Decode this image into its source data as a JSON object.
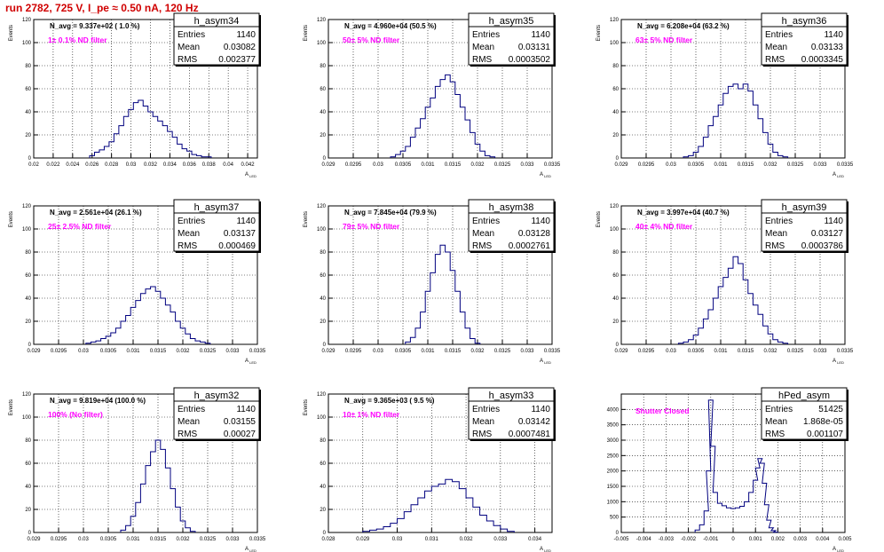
{
  "header": {
    "title": "run 2782,   725 V, I_pe ≈ 0.50 nA, 120 Hz"
  },
  "colors": {
    "title": "#d00000",
    "hist": "#00007f",
    "annotation": "#ff00ff",
    "grid": "#000000"
  },
  "chart_data": [
    {
      "type": "histogram",
      "name": "h_asym34",
      "stats": {
        "Entries": "1140",
        "Mean": "0.03082",
        "RMS": "0.002377"
      },
      "navg": "N_avg = 9.337e+02 ( 1.0 %)",
      "annotation": "1± 0.1% ND filter",
      "ylabel": "Events",
      "xlabel": "A",
      "xlim": [
        0.02,
        0.043
      ],
      "ylim": [
        0,
        120
      ],
      "xticks": [
        "0.02",
        "0.022",
        "0.024",
        "0.026",
        "0.028",
        "0.03",
        "0.032",
        "0.034",
        "0.036",
        "0.038",
        "0.04",
        "0.042"
      ],
      "yticks": [
        "0",
        "20",
        "40",
        "60",
        "80",
        "100",
        "120"
      ],
      "grid": true,
      "stats_box": "top-right",
      "x": [
        0.026,
        0.0265,
        0.027,
        0.0275,
        0.028,
        0.0285,
        0.029,
        0.0295,
        0.03,
        0.0305,
        0.031,
        0.0315,
        0.032,
        0.0325,
        0.033,
        0.0335,
        0.034,
        0.0345,
        0.035,
        0.0355,
        0.036,
        0.0365,
        0.037,
        0.0375,
        0.038
      ],
      "y": [
        2,
        5,
        7,
        10,
        14,
        21,
        28,
        36,
        42,
        48,
        50,
        45,
        40,
        36,
        32,
        28,
        23,
        18,
        12,
        8,
        6,
        3,
        2,
        1,
        1
      ]
    },
    {
      "type": "histogram",
      "name": "h_asym35",
      "stats": {
        "Entries": "1140",
        "Mean": "0.03131",
        "RMS": "0.0003502"
      },
      "navg": "N_avg = 4.960e+04 (50.5 %)",
      "annotation": "50± 5% ND filter",
      "ylabel": "Events",
      "xlabel": "A",
      "xlim": [
        0.029,
        0.0335
      ],
      "ylim": [
        0,
        120
      ],
      "xticks": [
        "0.029",
        "0.0295",
        "0.03",
        "0.0305",
        "0.031",
        "0.0315",
        "0.032",
        "0.0325",
        "0.033",
        "0.0335"
      ],
      "yticks": [
        "0",
        "20",
        "40",
        "60",
        "80",
        "100",
        "120"
      ],
      "grid": true,
      "stats_box": "top-right",
      "x": [
        0.0303,
        0.0304,
        0.0305,
        0.0306,
        0.0307,
        0.0308,
        0.0309,
        0.031,
        0.0311,
        0.0312,
        0.0313,
        0.0314,
        0.0315,
        0.0316,
        0.0317,
        0.0318,
        0.0319,
        0.032,
        0.0321,
        0.0322,
        0.0323
      ],
      "y": [
        1,
        3,
        6,
        10,
        18,
        26,
        34,
        44,
        52,
        62,
        68,
        72,
        66,
        55,
        44,
        33,
        22,
        12,
        6,
        2,
        1
      ]
    },
    {
      "type": "histogram",
      "name": "h_asym36",
      "stats": {
        "Entries": "1140",
        "Mean": "0.03133",
        "RMS": "0.0003345"
      },
      "navg": "N_avg = 6.208e+04 (63.2 %)",
      "annotation": "63± 5% ND filter",
      "ylabel": "Events",
      "xlabel": "A",
      "xlim": [
        0.029,
        0.0335
      ],
      "ylim": [
        0,
        120
      ],
      "xticks": [
        "0.029",
        "0.0295",
        "0.03",
        "0.0305",
        "0.031",
        "0.0315",
        "0.032",
        "0.0325",
        "0.033",
        "0.0335"
      ],
      "yticks": [
        "0",
        "20",
        "40",
        "60",
        "80",
        "100",
        "120"
      ],
      "grid": true,
      "stats_box": "top-right",
      "x": [
        0.0303,
        0.0304,
        0.0305,
        0.0306,
        0.0307,
        0.0308,
        0.0309,
        0.031,
        0.0311,
        0.0312,
        0.0313,
        0.0314,
        0.0315,
        0.0316,
        0.0317,
        0.0318,
        0.0319,
        0.032,
        0.0321,
        0.0322,
        0.0323
      ],
      "y": [
        1,
        2,
        5,
        10,
        18,
        28,
        36,
        46,
        56,
        62,
        64,
        60,
        64,
        58,
        46,
        34,
        22,
        12,
        5,
        2,
        1
      ]
    },
    {
      "type": "histogram",
      "name": "h_asym37",
      "stats": {
        "Entries": "1140",
        "Mean": "0.03137",
        "RMS": "0.000469"
      },
      "navg": "N_avg = 2.561e+04 (26.1 %)",
      "annotation": "25± 2.5% ND filter",
      "ylabel": "Events",
      "xlabel": "A",
      "xlim": [
        0.029,
        0.0335
      ],
      "ylim": [
        0,
        120
      ],
      "xticks": [
        "0.029",
        "0.0295",
        "0.03",
        "0.0305",
        "0.031",
        "0.0315",
        "0.032",
        "0.0325",
        "0.033",
        "0.0335"
      ],
      "yticks": [
        "0",
        "20",
        "40",
        "60",
        "80",
        "100",
        "120"
      ],
      "grid": true,
      "stats_box": "top-right",
      "x": [
        0.0301,
        0.0302,
        0.0303,
        0.0304,
        0.0305,
        0.0306,
        0.0307,
        0.0308,
        0.0309,
        0.031,
        0.0311,
        0.0312,
        0.0313,
        0.0314,
        0.0315,
        0.0316,
        0.0317,
        0.0318,
        0.0319,
        0.032,
        0.0321,
        0.0322,
        0.0323,
        0.0324,
        0.0325
      ],
      "y": [
        1,
        2,
        3,
        5,
        7,
        10,
        14,
        20,
        25,
        32,
        38,
        44,
        48,
        50,
        46,
        40,
        34,
        28,
        20,
        14,
        9,
        5,
        3,
        2,
        1
      ]
    },
    {
      "type": "histogram",
      "name": "h_asym38",
      "stats": {
        "Entries": "1140",
        "Mean": "0.03128",
        "RMS": "0.0002761"
      },
      "navg": "N_avg = 7.845e+04 (79.9 %)",
      "annotation": "79± 5% ND filter",
      "ylabel": "Events",
      "xlabel": "A",
      "xlim": [
        0.029,
        0.0335
      ],
      "ylim": [
        0,
        120
      ],
      "xticks": [
        "0.029",
        "0.0295",
        "0.03",
        "0.0305",
        "0.031",
        "0.0315",
        "0.032",
        "0.0325",
        "0.033",
        "0.0335"
      ],
      "yticks": [
        "0",
        "20",
        "40",
        "60",
        "80",
        "100",
        "120"
      ],
      "grid": true,
      "stats_box": "top-right",
      "x": [
        0.0306,
        0.0307,
        0.0308,
        0.0309,
        0.031,
        0.0311,
        0.0312,
        0.0313,
        0.0314,
        0.0315,
        0.0316,
        0.0317,
        0.0318,
        0.0319,
        0.032
      ],
      "y": [
        2,
        6,
        14,
        28,
        46,
        62,
        78,
        86,
        80,
        64,
        46,
        28,
        14,
        5,
        1
      ]
    },
    {
      "type": "histogram",
      "name": "h_asym39",
      "stats": {
        "Entries": "1140",
        "Mean": "0.03127",
        "RMS": "0.0003786"
      },
      "navg": "N_avg = 3.997e+04 (40.7 %)",
      "annotation": "40± 4% ND filter",
      "ylabel": "Events",
      "xlabel": "A",
      "xlim": [
        0.029,
        0.0335
      ],
      "ylim": [
        0,
        120
      ],
      "xticks": [
        "0.029",
        "0.0295",
        "0.03",
        "0.0305",
        "0.031",
        "0.0315",
        "0.032",
        "0.0325",
        "0.033",
        "0.0335"
      ],
      "yticks": [
        "0",
        "20",
        "40",
        "60",
        "80",
        "100",
        "120"
      ],
      "grid": true,
      "stats_box": "top-right",
      "x": [
        0.0302,
        0.0303,
        0.0304,
        0.0305,
        0.0306,
        0.0307,
        0.0308,
        0.0309,
        0.031,
        0.0311,
        0.0312,
        0.0313,
        0.0314,
        0.0315,
        0.0316,
        0.0317,
        0.0318,
        0.0319,
        0.032,
        0.0321,
        0.0322,
        0.0323
      ],
      "y": [
        1,
        2,
        4,
        8,
        14,
        22,
        30,
        40,
        50,
        58,
        66,
        76,
        70,
        56,
        44,
        34,
        26,
        16,
        9,
        4,
        2,
        1
      ]
    },
    {
      "type": "histogram",
      "name": "h_asym32",
      "stats": {
        "Entries": "1140",
        "Mean": "0.03155",
        "RMS": "0.00027"
      },
      "navg": "N_avg = 9.819e+04 (100.0 %)",
      "annotation": "100% (No filter)",
      "ylabel": "Events",
      "xlabel": "A",
      "xlim": [
        0.029,
        0.0335
      ],
      "ylim": [
        0,
        120
      ],
      "xticks": [
        "0.029",
        "0.0295",
        "0.03",
        "0.0305",
        "0.031",
        "0.0315",
        "0.032",
        "0.0325",
        "0.033",
        "0.0335"
      ],
      "yticks": [
        "0",
        "20",
        "40",
        "60",
        "80",
        "100",
        "120"
      ],
      "grid": true,
      "stats_box": "top-right",
      "x": [
        0.0308,
        0.0309,
        0.031,
        0.0311,
        0.0312,
        0.0313,
        0.0314,
        0.0315,
        0.0316,
        0.0317,
        0.0318,
        0.0319,
        0.032,
        0.0321,
        0.0322
      ],
      "y": [
        2,
        6,
        14,
        26,
        42,
        58,
        70,
        80,
        72,
        56,
        38,
        22,
        10,
        4,
        1
      ]
    },
    {
      "type": "histogram",
      "name": "h_asym33",
      "stats": {
        "Entries": "1140",
        "Mean": "0.03142",
        "RMS": "0.0007481"
      },
      "navg": "N_avg = 9.365e+03 ( 9.5 %)",
      "annotation": "10± 1% ND filter",
      "ylabel": "Events",
      "xlabel": "A",
      "xlim": [
        0.028,
        0.0345
      ],
      "ylim": [
        0,
        120
      ],
      "xticks": [
        "0.028",
        "0.029",
        "0.03",
        "0.031",
        "0.032",
        "0.033",
        "0.034"
      ],
      "yticks": [
        "0",
        "20",
        "40",
        "60",
        "80",
        "100",
        "120"
      ],
      "grid": true,
      "stats_box": "top-right",
      "x": [
        0.0291,
        0.0293,
        0.0295,
        0.0297,
        0.0299,
        0.0301,
        0.0303,
        0.0305,
        0.0307,
        0.0309,
        0.0311,
        0.0313,
        0.0315,
        0.0317,
        0.0319,
        0.0321,
        0.0323,
        0.0325,
        0.0327,
        0.0329,
        0.0331,
        0.0333
      ],
      "y": [
        1,
        2,
        3,
        5,
        8,
        12,
        18,
        24,
        30,
        36,
        40,
        42,
        46,
        44,
        38,
        30,
        22,
        15,
        10,
        6,
        3,
        1
      ]
    },
    {
      "type": "histogram",
      "name": "hPed_asym",
      "stats": {
        "Entries": "51425",
        "Mean": "1.868e-05",
        "RMS": "0.001107"
      },
      "navg": "",
      "annotation": "Shutter Closed",
      "ylabel": "",
      "xlabel": "A",
      "xlim": [
        -0.005,
        0.005
      ],
      "ylim": [
        0,
        4500
      ],
      "xticks": [
        "-0.005",
        "-0.004",
        "-0.003",
        "-0.002",
        "-0.001",
        "0",
        "0.001",
        "0.002",
        "0.003",
        "0.004",
        "0.005"
      ],
      "yticks": [
        "0",
        "500",
        "1000",
        "1500",
        "2000",
        "2500",
        "3000",
        "3500",
        "4000"
      ],
      "grid": true,
      "stats_box": "top-right",
      "x": [
        -0.0016,
        -0.0014,
        -0.0012,
        -0.0011,
        -0.001,
        -0.0009,
        -0.0008,
        -0.0006,
        -0.0004,
        -0.0002,
        0,
        0.0002,
        0.0004,
        0.0006,
        0.0008,
        0.001,
        0.0011,
        0.0012,
        0.0013,
        0.0014,
        0.0015,
        0.0016,
        0.0017,
        0.0018,
        0.0019
      ],
      "y": [
        80,
        250,
        700,
        2000,
        4300,
        2800,
        1300,
        950,
        870,
        800,
        780,
        800,
        850,
        1000,
        1300,
        1700,
        2100,
        2400,
        2250,
        1600,
        900,
        400,
        150,
        60,
        10
      ]
    }
  ]
}
